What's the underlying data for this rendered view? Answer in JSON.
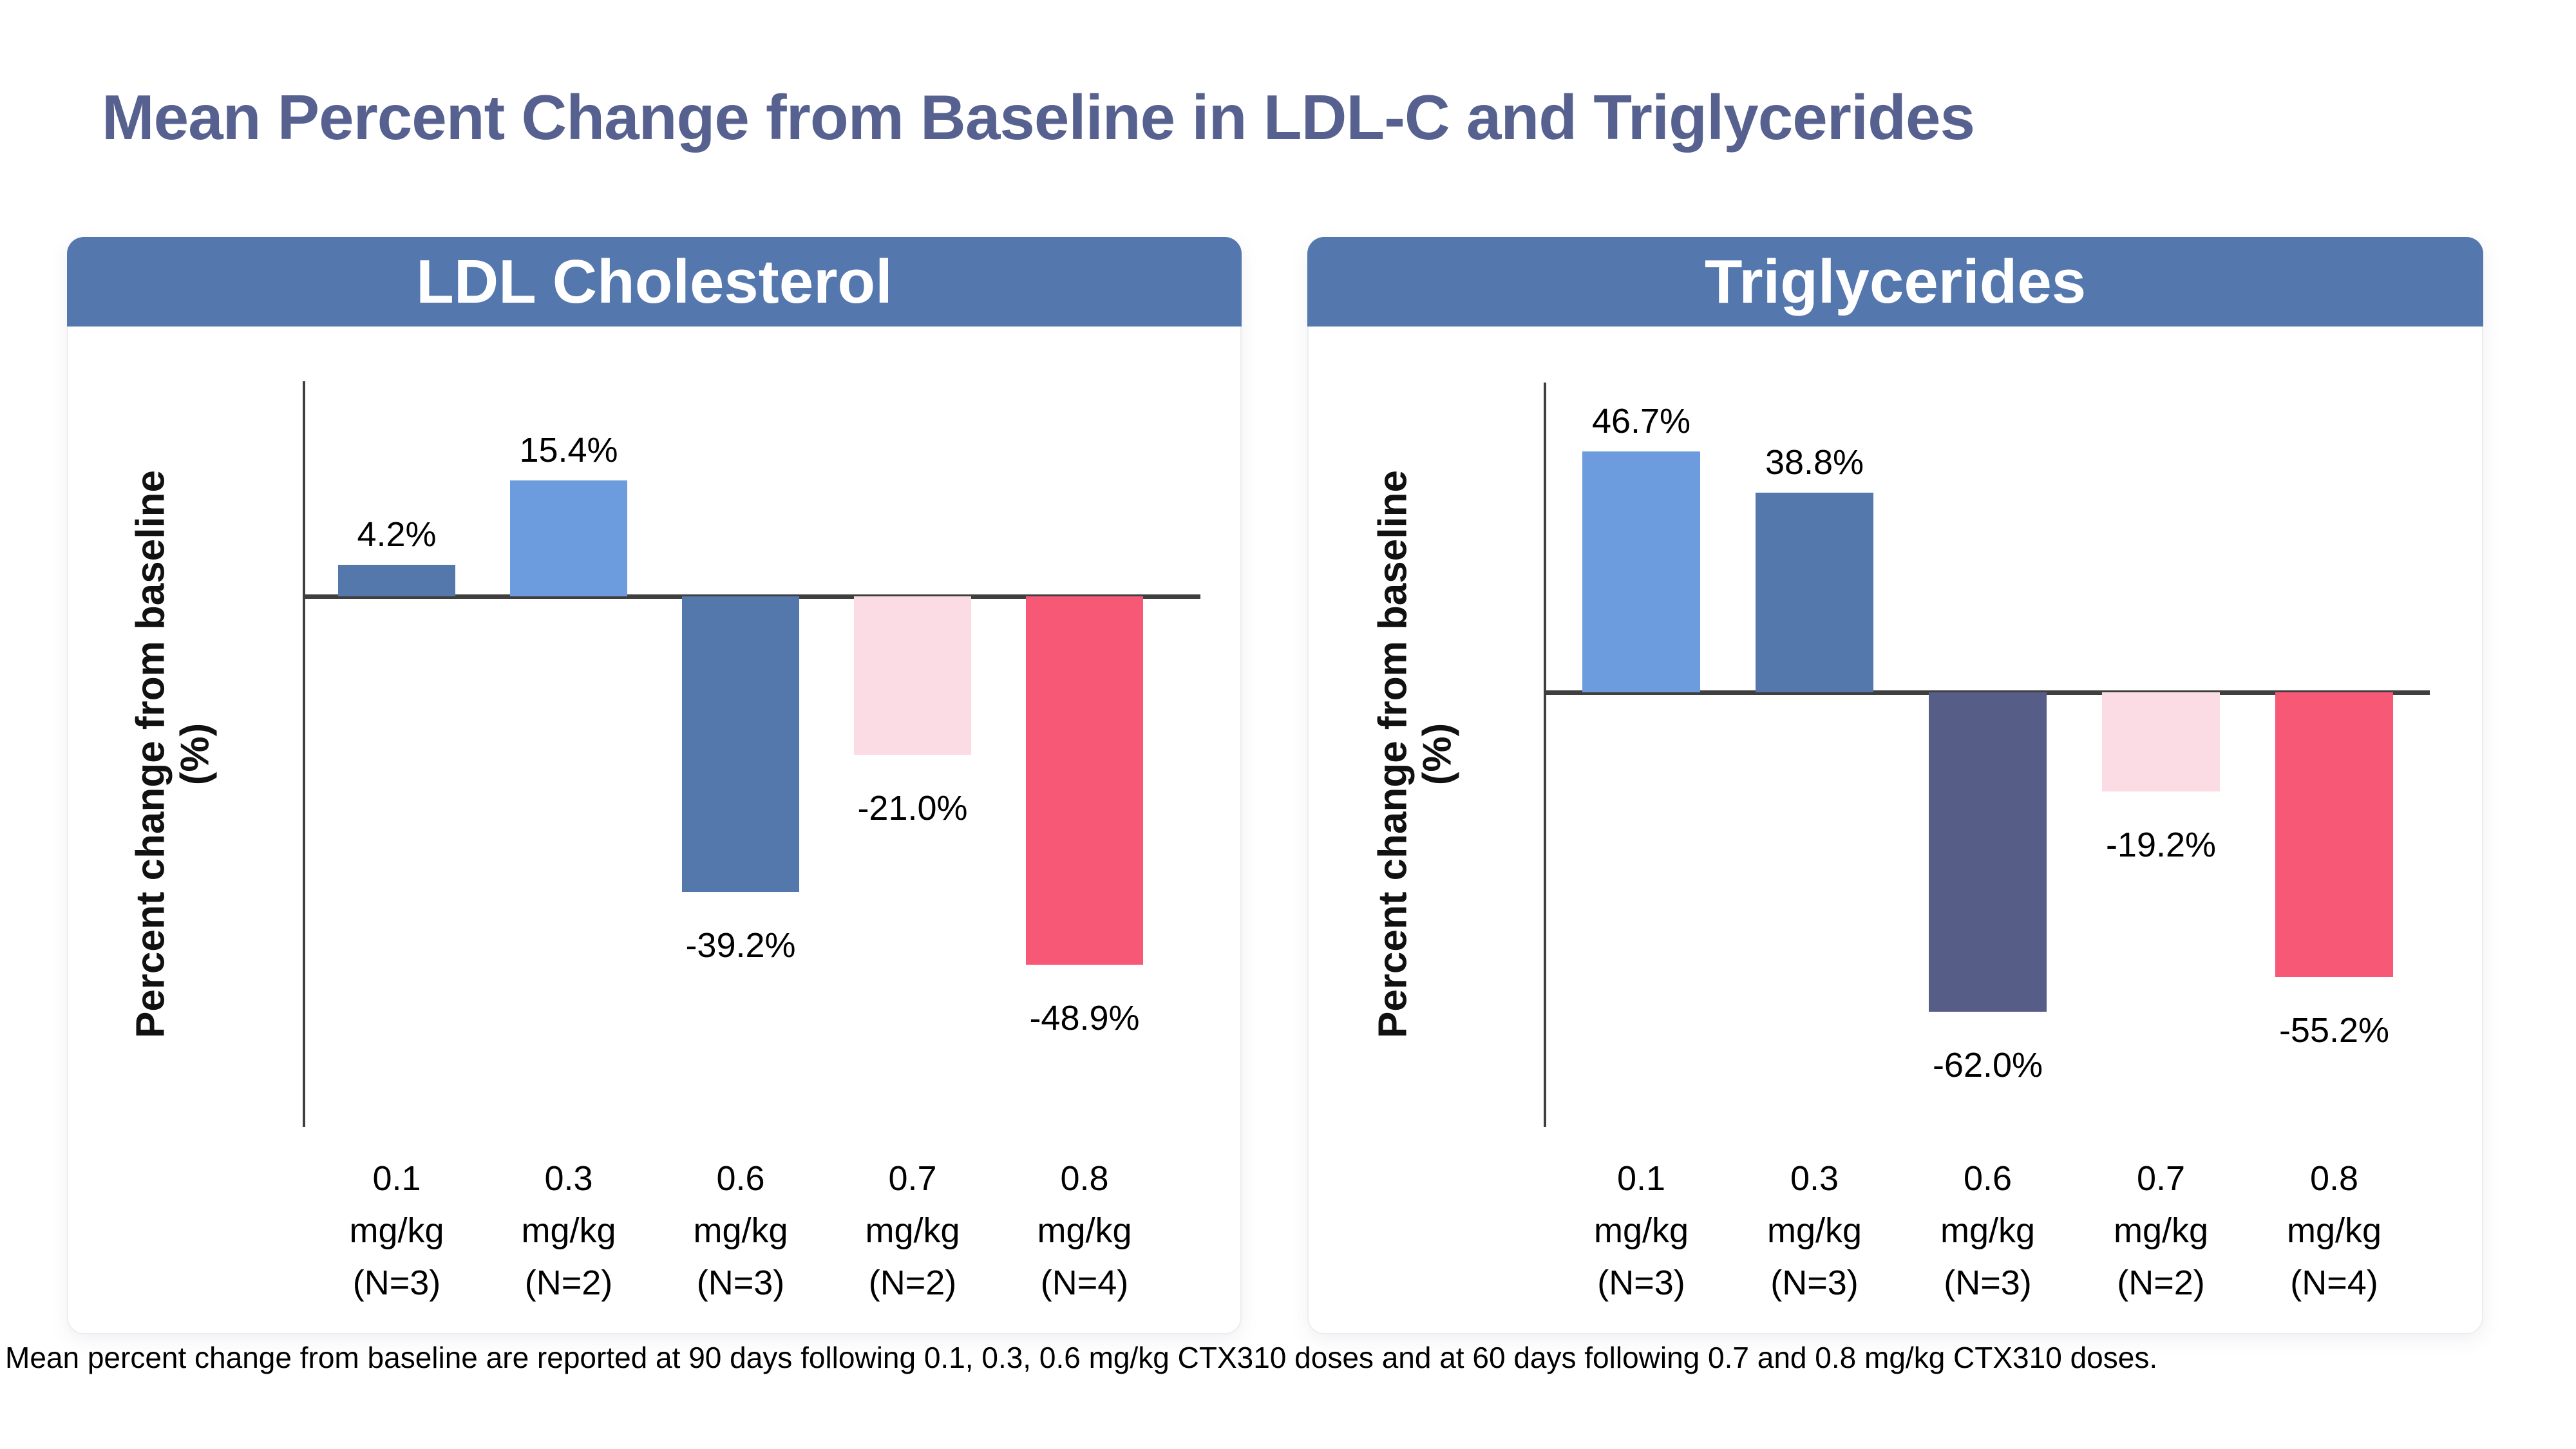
{
  "title": "Mean Percent Change from Baseline in LDL-C and Triglycerides",
  "footnote": "Mean percent change from baseline are reported at 90 days following 0.1, 0.3, 0.6 mg/kg CTX310 doses and at 60 days following 0.7 and 0.8 mg/kg CTX310 doses.",
  "colors": {
    "title": "#57618F",
    "panel_header_bg": "#5477AE",
    "panel_header_text": "#FFFFFF",
    "axis": "#3F3F3F",
    "steel_blue": "#5578AC",
    "light_blue": "#6D9CDE",
    "slate_purple": "#565D87",
    "light_pink": "#FCDCE4",
    "pink_red": "#F75875"
  },
  "chart_data": [
    {
      "type": "bar",
      "title": "LDL Cholesterol",
      "xlabel": "",
      "ylabel": "Percent change from baseline (%)",
      "ylabel_lines": [
        "Percent change from baseline",
        "(%)"
      ],
      "categories": [
        "0.1 mg/kg (N=3)",
        "0.3 mg/kg (N=2)",
        "0.6 mg/kg (N=3)",
        "0.7 mg/kg (N=2)",
        "0.8 mg/kg (N=4)"
      ],
      "x_tick_lines": [
        [
          "0.1",
          "mg/kg",
          "(N=3)"
        ],
        [
          "0.3",
          "mg/kg",
          "(N=2)"
        ],
        [
          "0.6",
          "mg/kg",
          "(N=3)"
        ],
        [
          "0.7",
          "mg/kg",
          "(N=2)"
        ],
        [
          "0.8",
          "mg/kg",
          "(N=4)"
        ]
      ],
      "values": [
        4.2,
        15.4,
        -39.2,
        -21.0,
        -48.9
      ],
      "value_labels": [
        "4.2%",
        "15.4%",
        "-39.2%",
        "-21.0%",
        "-48.9%"
      ],
      "bar_colors": [
        "#5578AC",
        "#6D9CDE",
        "#5578AC",
        "#FCDCE4",
        "#F75875"
      ],
      "grid": false,
      "legend": null,
      "y_axis_tick_labels": "none"
    },
    {
      "type": "bar",
      "title": "Triglycerides",
      "xlabel": "",
      "ylabel": "Percent change from baseline (%)",
      "ylabel_lines": [
        "Percent change from baseline",
        "(%)"
      ],
      "categories": [
        "0.1 mg/kg (N=3)",
        "0.3 mg/kg (N=3)",
        "0.6 mg/kg (N=3)",
        "0.7 mg/kg (N=2)",
        "0.8 mg/kg (N=4)"
      ],
      "x_tick_lines": [
        [
          "0.1",
          "mg/kg",
          "(N=3)"
        ],
        [
          "0.3",
          "mg/kg",
          "(N=3)"
        ],
        [
          "0.6",
          "mg/kg",
          "(N=3)"
        ],
        [
          "0.7",
          "mg/kg",
          "(N=2)"
        ],
        [
          "0.8",
          "mg/kg",
          "(N=4)"
        ]
      ],
      "values": [
        46.7,
        38.8,
        -62.0,
        -19.2,
        -55.2
      ],
      "value_labels": [
        "46.7%",
        "38.8%",
        "-62.0%",
        "-19.2%",
        "-55.2%"
      ],
      "bar_colors": [
        "#6D9CDE",
        "#5578AC",
        "#565D87",
        "#FCDCE4",
        "#F75875"
      ],
      "grid": false,
      "legend": null,
      "y_axis_tick_labels": "none"
    }
  ]
}
